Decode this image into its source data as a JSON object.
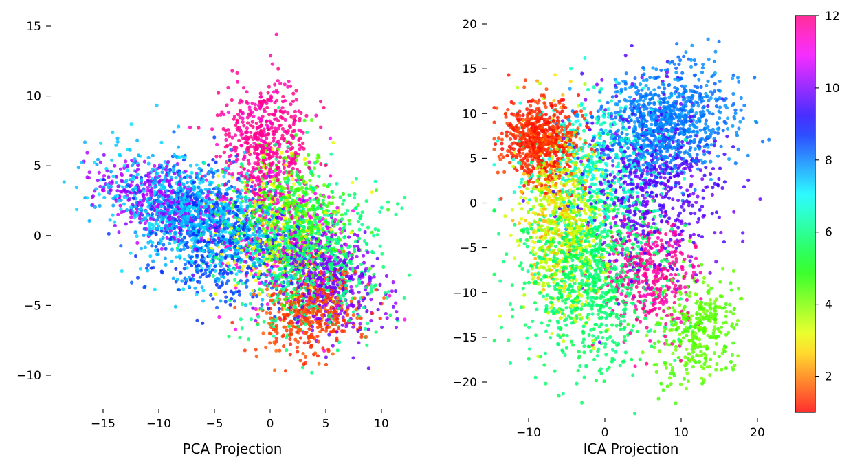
{
  "chart_data": [
    {
      "type": "scatter",
      "xlabel": "PCA Projection",
      "ylabel": "",
      "xlim": [
        -18.5,
        12.5
      ],
      "ylim": [
        -12.2,
        15.2
      ],
      "xticks": [
        -15,
        -10,
        -5,
        0,
        5,
        10
      ],
      "yticks": [
        -10,
        -5,
        0,
        5,
        10,
        15
      ],
      "xtick_labels": [
        "−15",
        "−10",
        "−5",
        "0",
        "5",
        "10"
      ],
      "ytick_labels": [
        "−10",
        "−5",
        "0",
        "5",
        "10",
        "15"
      ],
      "color_by": "value",
      "clusters": [
        {
          "value": 1.5,
          "center": [
            3.8,
            -5.3
          ],
          "spread": [
            2.3,
            1.5
          ],
          "rot": 0.3,
          "count": 430
        },
        {
          "value": 4.5,
          "center": [
            2.0,
            1.5
          ],
          "spread": [
            2.5,
            2.3
          ],
          "rot": -0.4,
          "count": 420
        },
        {
          "value": 3.0,
          "center": [
            0.5,
            0.5
          ],
          "spread": [
            2.8,
            2.4
          ],
          "rot": -0.4,
          "count": 260
        },
        {
          "value": 6.0,
          "center": [
            3.0,
            -1.2
          ],
          "spread": [
            3.4,
            2.8
          ],
          "rot": -0.5,
          "count": 780
        },
        {
          "value": 7.5,
          "center": [
            -7.0,
            1.3
          ],
          "spread": [
            3.8,
            1.9
          ],
          "rot": -0.35,
          "count": 950
        },
        {
          "value": 8.5,
          "center": [
            -5.0,
            0.2
          ],
          "spread": [
            3.4,
            2.2
          ],
          "rot": -0.35,
          "count": 520
        },
        {
          "value": 10.0,
          "center": [
            5.0,
            -3.0
          ],
          "spread": [
            2.6,
            1.8
          ],
          "rot": -0.4,
          "count": 480
        },
        {
          "value": 10.3,
          "center": [
            -10.0,
            2.5
          ],
          "spread": [
            3.0,
            1.3
          ],
          "rot": -0.3,
          "count": 340
        },
        {
          "value": 11.8,
          "center": [
            -0.5,
            6.3
          ],
          "spread": [
            1.9,
            2.3
          ],
          "rot": 0.1,
          "count": 540
        },
        {
          "value": 11.2,
          "center": [
            1.5,
            0.0
          ],
          "spread": [
            3.2,
            2.6
          ],
          "rot": -0.4,
          "count": 260
        }
      ]
    },
    {
      "type": "scatter",
      "xlabel": "ICA Projection",
      "ylabel": "",
      "xlim": [
        -14.5,
        21.5
      ],
      "ylim": [
        -23.5,
        21.5
      ],
      "xticks": [
        -10,
        0,
        10,
        20
      ],
      "yticks": [
        -20,
        -15,
        -10,
        -5,
        0,
        5,
        10,
        15,
        20
      ],
      "xtick_labels": [
        "−10",
        "0",
        "10",
        "20"
      ],
      "ytick_labels": [
        "−20",
        "−15",
        "−10",
        "−5",
        "0",
        "5",
        "10",
        "15",
        "20"
      ],
      "color_by": "value",
      "clusters": [
        {
          "value": 1.3,
          "center": [
            -8.5,
            6.8
          ],
          "spread": [
            2.5,
            2.3
          ],
          "rot": 0.0,
          "count": 680
        },
        {
          "value": 3.5,
          "center": [
            -5.0,
            -3.0
          ],
          "spread": [
            3.0,
            5.0
          ],
          "rot": 0.0,
          "count": 520
        },
        {
          "value": 4.3,
          "center": [
            12.0,
            -14.0
          ],
          "spread": [
            2.6,
            3.2
          ],
          "rot": -0.6,
          "count": 330
        },
        {
          "value": 5.8,
          "center": [
            -2.0,
            -8.0
          ],
          "spread": [
            4.5,
            5.0
          ],
          "rot": 0.0,
          "count": 900
        },
        {
          "value": 6.6,
          "center": [
            -1.0,
            4.0
          ],
          "spread": [
            4.5,
            4.0
          ],
          "rot": 0.0,
          "count": 420
        },
        {
          "value": 8.0,
          "center": [
            8.0,
            9.0
          ],
          "spread": [
            4.5,
            3.0
          ],
          "rot": 0.2,
          "count": 900
        },
        {
          "value": 9.7,
          "center": [
            6.0,
            2.0
          ],
          "spread": [
            4.5,
            5.0
          ],
          "rot": 0.0,
          "count": 620
        },
        {
          "value": 11.8,
          "center": [
            6.0,
            -8.0
          ],
          "spread": [
            3.0,
            3.2
          ],
          "rot": 0.0,
          "count": 380
        },
        {
          "value": 2.5,
          "center": [
            -6.5,
            0.0
          ],
          "spread": [
            2.0,
            5.0
          ],
          "rot": 0.0,
          "count": 200
        }
      ]
    }
  ],
  "colorbar": {
    "vmin": 1,
    "vmax": 12,
    "ticks": [
      2,
      4,
      6,
      8,
      10,
      12
    ],
    "tick_labels": [
      "2",
      "4",
      "6",
      "8",
      "10",
      "12"
    ],
    "colormap": "hsv"
  }
}
